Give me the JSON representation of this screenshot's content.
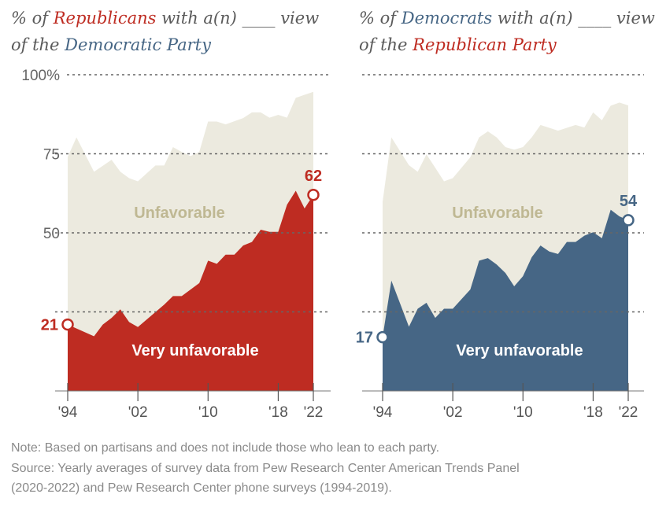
{
  "colors": {
    "republican": "#be2c22",
    "democrat": "#466685",
    "unfavorable": "#eceadf",
    "unfav_label": "#bfb893"
  },
  "charts": [
    {
      "title_pre": "% of ",
      "title_party": "Republicans",
      "title_mid": " with a(n) ____ view of the ",
      "title_target": "Democratic Party",
      "party_color": "#be2c22",
      "target_color": "#466685",
      "fill": "#be2c22"
    },
    {
      "title_pre": "% of ",
      "title_party": "Democrats",
      "title_mid": " with a(n) ____ view of the ",
      "title_target": "Republican Party",
      "party_color": "#466685",
      "target_color": "#be2c22",
      "fill": "#466685"
    }
  ],
  "chart_data": [
    {
      "type": "area",
      "title": "% of Republicans with a(n) ____ view of the Democratic Party",
      "ylim": [
        0,
        100
      ],
      "yticks": [
        "100%",
        "75",
        "50",
        "25"
      ],
      "xticks": [
        "'94",
        "'02",
        "'10",
        "'18",
        "'22"
      ],
      "series": [
        {
          "name": "Unfavorable",
          "points": [
            [
              1994,
              74
            ],
            [
              1995,
              80.2
            ],
            [
              1997,
              69.3
            ],
            [
              1999,
              73.1
            ],
            [
              2000,
              69.3
            ],
            [
              2001,
              67.3
            ],
            [
              2002,
              66.3
            ],
            [
              2004,
              71.3
            ],
            [
              2005,
              71.3
            ],
            [
              2006,
              77.1
            ],
            [
              2007,
              75.6
            ],
            [
              2008,
              74.3
            ],
            [
              2009,
              75.6
            ],
            [
              2010,
              85.2
            ],
            [
              2011,
              85.2
            ],
            [
              2012,
              84.3
            ],
            [
              2014,
              86.3
            ],
            [
              2015,
              88.1
            ],
            [
              2016,
              88.1
            ],
            [
              2017,
              86.4
            ],
            [
              2018,
              87.3
            ],
            [
              2019,
              86.4
            ],
            [
              2020,
              92.7
            ],
            [
              2022,
              94.6
            ]
          ]
        },
        {
          "name": "Very unfavorable",
          "points": [
            [
              1994,
              21
            ],
            [
              1997,
              17.3
            ],
            [
              1998,
              21
            ],
            [
              1999,
              23.1
            ],
            [
              2000,
              25.8
            ],
            [
              2001,
              21.8
            ],
            [
              2002,
              20.2
            ],
            [
              2005,
              27.3
            ],
            [
              2006,
              30
            ],
            [
              2007,
              30
            ],
            [
              2009,
              34.1
            ],
            [
              2010,
              41.2
            ],
            [
              2011,
              40.2
            ],
            [
              2012,
              43.1
            ],
            [
              2013,
              43.1
            ],
            [
              2014,
              46
            ],
            [
              2015,
              47.1
            ],
            [
              2016,
              51
            ],
            [
              2017,
              50.3
            ],
            [
              2018,
              50.3
            ],
            [
              2019,
              58.9
            ],
            [
              2020,
              63.3
            ],
            [
              2021,
              57.7
            ],
            [
              2022,
              62
            ]
          ]
        }
      ],
      "labels": {
        "unfavorable": "Unfavorable",
        "very_unfavorable": "Very unfavorable",
        "start": "21",
        "end": "62"
      }
    },
    {
      "type": "area",
      "title": "% of Democrats with a(n) ____ view of the Republican Party",
      "ylim": [
        0,
        100
      ],
      "xticks": [
        "'94",
        "'02",
        "'10",
        "'18",
        "'22"
      ],
      "series": [
        {
          "name": "Unfavorable",
          "points": [
            [
              1994,
              59.8
            ],
            [
              1995,
              80.2
            ],
            [
              1997,
              71.4
            ],
            [
              1998,
              69.3
            ],
            [
              1999,
              74.8
            ],
            [
              2000,
              70.6
            ],
            [
              2001,
              66.3
            ],
            [
              2002,
              67.3
            ],
            [
              2004,
              73.9
            ],
            [
              2005,
              80.2
            ],
            [
              2006,
              82.1
            ],
            [
              2007,
              80.2
            ],
            [
              2008,
              77.1
            ],
            [
              2009,
              76.3
            ],
            [
              2010,
              77.1
            ],
            [
              2011,
              80.2
            ],
            [
              2012,
              84.1
            ],
            [
              2014,
              82.3
            ],
            [
              2016,
              84.1
            ],
            [
              2017,
              83.3
            ],
            [
              2018,
              88.1
            ],
            [
              2019,
              85.6
            ],
            [
              2020,
              90.2
            ],
            [
              2021,
              91.2
            ],
            [
              2022,
              90.3
            ]
          ]
        },
        {
          "name": "Very unfavorable",
          "points": [
            [
              1994,
              17
            ],
            [
              1995,
              34.9
            ],
            [
              1997,
              20.3
            ],
            [
              1998,
              26
            ],
            [
              1999,
              27.9
            ],
            [
              2000,
              23.1
            ],
            [
              2001,
              26
            ],
            [
              2002,
              26
            ],
            [
              2004,
              32.1
            ],
            [
              2005,
              41.2
            ],
            [
              2006,
              42
            ],
            [
              2007,
              40
            ],
            [
              2008,
              37.3
            ],
            [
              2009,
              33.1
            ],
            [
              2010,
              36.3
            ],
            [
              2011,
              42.3
            ],
            [
              2012,
              46
            ],
            [
              2013,
              44.1
            ],
            [
              2014,
              43.3
            ],
            [
              2015,
              47.1
            ],
            [
              2016,
              47.1
            ],
            [
              2017,
              49.1
            ],
            [
              2018,
              50.2
            ],
            [
              2019,
              48.3
            ],
            [
              2020,
              57.3
            ],
            [
              2021,
              55.2
            ],
            [
              2022,
              54
            ]
          ]
        }
      ],
      "labels": {
        "unfavorable": "Unfavorable",
        "very_unfavorable": "Very unfavorable",
        "start": "17",
        "end": "54"
      }
    }
  ],
  "notes": {
    "note": "Note: Based on partisans and does not include those who lean to each party.",
    "source1": "Source: Yearly averages of survey data from Pew Research Center American Trends Panel",
    "source2": "(2020-2022) and Pew Research Center phone surveys (1994-2019)."
  }
}
